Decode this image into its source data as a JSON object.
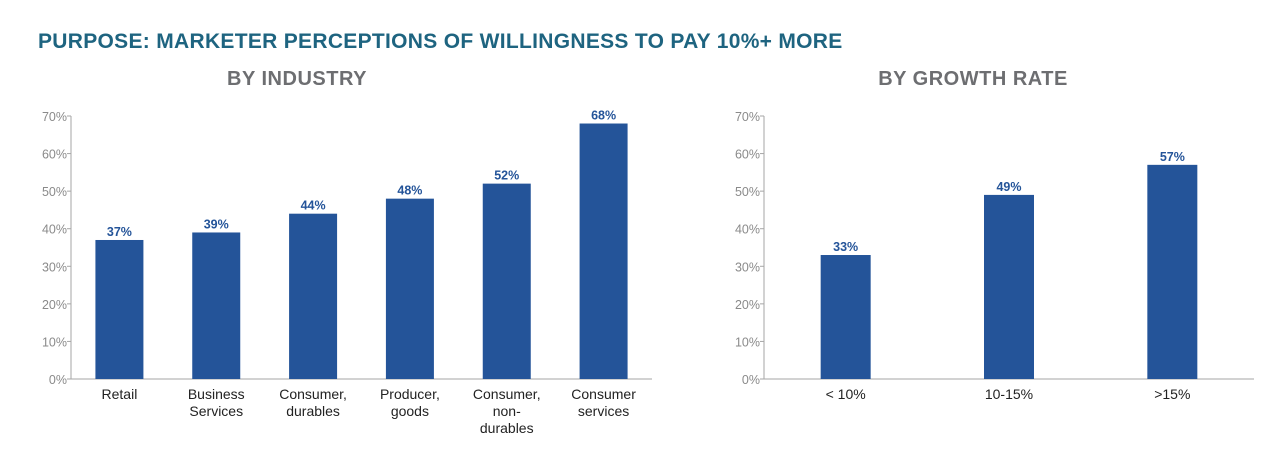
{
  "colors": {
    "title": "#1e6480",
    "subtitle": "#6d6e71",
    "bar": "#245499",
    "value_label": "#245499",
    "tick": "#8a8a8a",
    "category": "#222222",
    "axis": "#a6a6a6"
  },
  "page_title": "PURPOSE: MARKETER PERCEPTIONS OF WILLINGNESS TO PAY 10%+ MORE",
  "chart_data": [
    {
      "type": "bar",
      "title": "BY INDUSTRY",
      "categories": [
        [
          "Retail"
        ],
        [
          "Business",
          "Services"
        ],
        [
          "Consumer,",
          "durables"
        ],
        [
          "Producer,",
          "goods"
        ],
        [
          "Consumer,",
          "non-",
          "durables"
        ],
        [
          "Consumer",
          "services"
        ]
      ],
      "values": [
        37,
        39,
        44,
        48,
        52,
        68
      ],
      "value_labels": [
        "37%",
        "39%",
        "44%",
        "48%",
        "52%",
        "68%"
      ],
      "yticks": [
        "0%",
        "10%",
        "20%",
        "30%",
        "40%",
        "50%",
        "60%",
        "70%"
      ],
      "ylim": [
        0,
        70
      ],
      "grid": false,
      "legend": "none"
    },
    {
      "type": "bar",
      "title": "BY GROWTH RATE",
      "categories": [
        [
          "< 10%"
        ],
        [
          "10-15%"
        ],
        [
          ">15%"
        ]
      ],
      "values": [
        33,
        49,
        57
      ],
      "value_labels": [
        "33%",
        "49%",
        "57%"
      ],
      "yticks": [
        "0%",
        "10%",
        "20%",
        "30%",
        "40%",
        "50%",
        "60%",
        "70%"
      ],
      "ylim": [
        0,
        70
      ],
      "grid": false,
      "legend": "none"
    }
  ]
}
